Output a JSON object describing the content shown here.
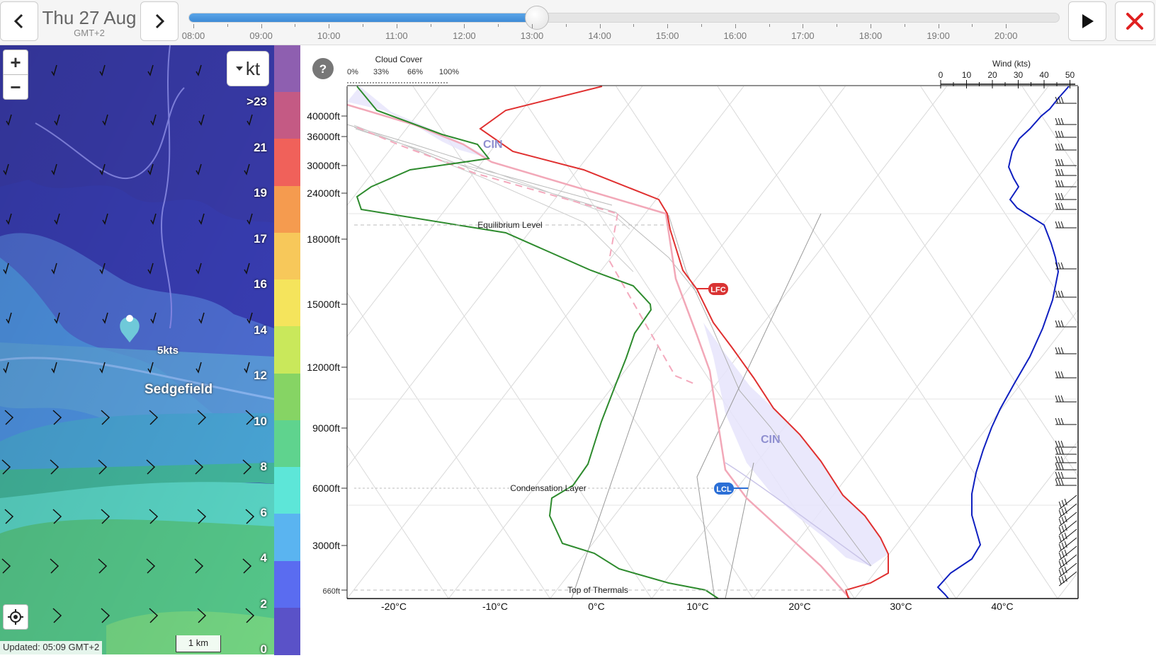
{
  "header": {
    "date": "Thu 27 Aug",
    "timezone": "GMT+2",
    "prev_icon": "chevron-left-icon",
    "next_icon": "chevron-right-icon",
    "play_icon": "play-icon",
    "close_icon": "close-icon",
    "close_color": "#e02020"
  },
  "timeline": {
    "labels": [
      "08:00",
      "09:00",
      "10:00",
      "11:00",
      "12:00",
      "13:00",
      "14:00",
      "15:00",
      "16:00",
      "17:00",
      "18:00",
      "19:00",
      "20:00"
    ],
    "progress": 0.4
  },
  "map": {
    "zoom_in": "+",
    "zoom_out": "−",
    "unit": "kt",
    "unit_dropdown_icon": "caret-down-icon",
    "scale_labels": [
      ">23",
      "21",
      "19",
      "17",
      "16",
      "14",
      "12",
      "10",
      "8",
      "6",
      "4",
      "2",
      "0"
    ],
    "scale_colors": [
      "#8e5fb0",
      "#c45a84",
      "#f0615a",
      "#f59b4f",
      "#f7c85a",
      "#f5e45c",
      "#c9e85b",
      "#86d464",
      "#5fd38e",
      "#5de6d8",
      "#5ab4f0",
      "#5a6cf0",
      "#5a52c8"
    ],
    "place": "Sedgefield",
    "marker_speed": "5kts",
    "scale_bar": "1 km",
    "updated": "Updated: 05:09 GMT+2",
    "locate_icon": "crosshair-icon"
  },
  "chart_data": {
    "type": "skew-t sounding",
    "help_label": "?",
    "cloud_cover": {
      "title": "Cloud Cover",
      "ticks": [
        "0%",
        "33%",
        "66%",
        "100%"
      ]
    },
    "wind": {
      "title": "Wind (kts)",
      "ticks": [
        "0",
        "10",
        "20",
        "30",
        "40",
        "50"
      ]
    },
    "altitude_labels": [
      "40000ft",
      "36000ft",
      "30000ft",
      "24000ft",
      "18000ft",
      "15000ft",
      "12000ft",
      "9000ft",
      "6000ft",
      "3000ft",
      "660ft"
    ],
    "temperature_labels": [
      "-20°C",
      "-10°C",
      "0°C",
      "10°C",
      "20°C",
      "30°C",
      "40°C"
    ],
    "annotations": {
      "equilibrium": "Equilibrium Level",
      "condensation": "Condensation Layer",
      "thermals": "Top of Thermals",
      "lfc": "LFC",
      "lcl": "LCL",
      "cin_upper": "CIN",
      "cin_lower": "CIN"
    },
    "colors": {
      "temperature": "#e03030",
      "dewpoint": "#2e8b2e",
      "parcel": "#f2a8b8",
      "wind": "#1020c0",
      "cin_fill": "#d8d6f6"
    }
  }
}
